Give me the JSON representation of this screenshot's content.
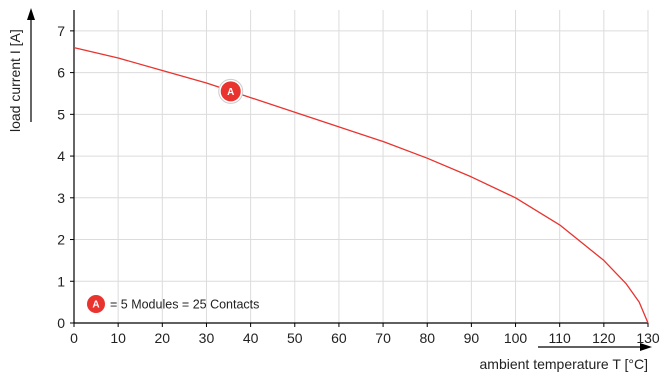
{
  "chart_data": {
    "type": "line",
    "xlabel": "ambient temperature T [°C]",
    "ylabel": "load current I [A]",
    "xlim": [
      0,
      130
    ],
    "ylim": [
      0,
      7.5
    ],
    "x_ticks": [
      0,
      10,
      20,
      30,
      40,
      50,
      60,
      70,
      80,
      90,
      100,
      110,
      120,
      130
    ],
    "y_ticks": [
      0,
      1,
      2,
      3,
      4,
      5,
      6,
      7
    ],
    "grid": true,
    "line_color": "#e8332f",
    "series": [
      {
        "marker": "A",
        "x": [
          0,
          10,
          20,
          30,
          40,
          50,
          60,
          70,
          80,
          90,
          100,
          110,
          120,
          125,
          128,
          130
        ],
        "y": [
          6.6,
          6.35,
          6.05,
          5.75,
          5.4,
          5.05,
          4.7,
          4.35,
          3.95,
          3.5,
          3.0,
          2.35,
          1.5,
          0.95,
          0.5,
          0
        ]
      }
    ],
    "marker_label": {
      "label": "A",
      "x": 35.5,
      "y": 5.55
    },
    "legend": {
      "marker": "A",
      "text": "= 5 Modules = 25 Contacts",
      "placement": "bottom-left"
    }
  }
}
